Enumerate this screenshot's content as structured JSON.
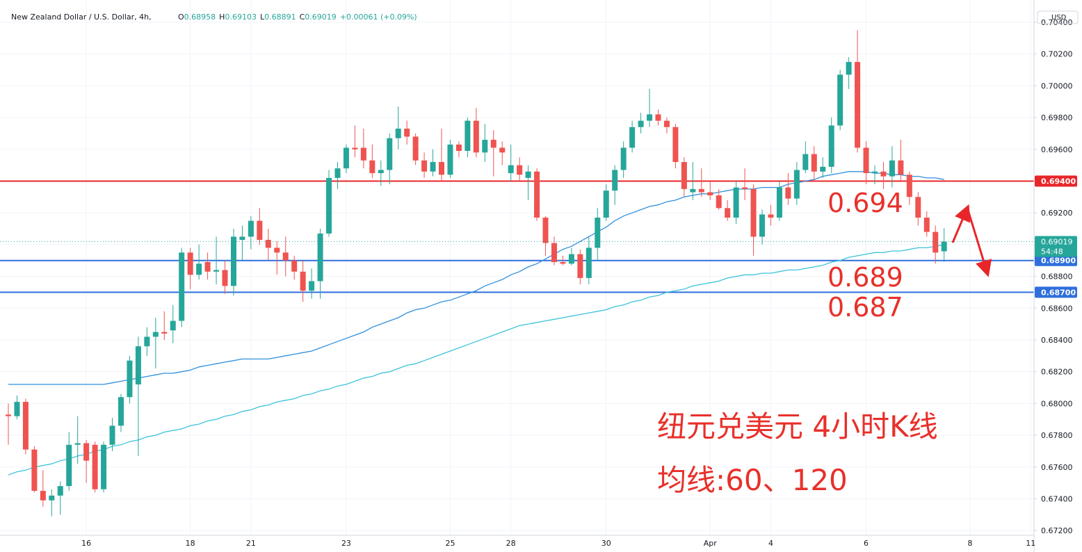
{
  "chart_data": {
    "type": "candlestick",
    "title": "New Zealand Dollar / U.S. Dollar, 4h,",
    "header_fields": [
      {
        "key": "O",
        "value": "0.68958"
      },
      {
        "key": "H",
        "value": "0.69103"
      },
      {
        "key": "L",
        "value": "0.68891"
      },
      {
        "key": "C",
        "value": "0.69019"
      }
    ],
    "change": "+0.00061 (+0.09%)",
    "currency": "USD",
    "categories": [
      null,
      null,
      null,
      null,
      null,
      null,
      null,
      null,
      null,
      "16",
      null,
      null,
      null,
      null,
      null,
      null,
      null,
      null,
      null,
      null,
      null,
      "18",
      null,
      null,
      null,
      null,
      null,
      null,
      "21",
      null,
      null,
      null,
      null,
      null,
      null,
      null,
      null,
      null,
      null,
      "23",
      null,
      null,
      null,
      null,
      null,
      null,
      null,
      null,
      null,
      null,
      null,
      "25",
      null,
      null,
      null,
      null,
      null,
      null,
      "28",
      null,
      null,
      null,
      null,
      null,
      null,
      null,
      null,
      null,
      null,
      "30",
      null,
      null,
      null,
      null,
      null,
      null,
      null,
      null,
      null,
      null,
      null,
      "Apr",
      null,
      null,
      null,
      null,
      null,
      null,
      "4",
      null,
      null,
      null,
      null,
      null,
      null,
      null,
      null,
      null,
      null,
      "6",
      null,
      null,
      null,
      null,
      null,
      null,
      null,
      null,
      null,
      null,
      null,
      "8",
      null,
      null,
      null,
      null,
      null,
      null,
      "11"
    ],
    "open": [
      0.6793,
      0.6792,
      0.6801,
      0.6771,
      0.6745,
      0.6739,
      0.6742,
      0.6748,
      0.6774,
      0.6775,
      0.6774,
      0.6746,
      0.6774,
      0.6786,
      0.6804,
      0.6812,
      0.6836,
      0.6842,
      0.6845,
      0.6846,
      0.6852,
      0.6895,
      0.6881,
      0.6889,
      0.6883,
      0.6884,
      0.6874,
      0.6903,
      0.6905,
      0.6915,
      0.6903,
      0.6898,
      0.6895,
      0.689,
      0.6883,
      0.6871,
      0.6877,
      0.6907,
      0.6942,
      0.6948,
      0.6961,
      0.6961,
      0.6953,
      0.6945,
      0.6947,
      0.6967,
      0.6973,
      0.6968,
      0.6953,
      0.6946,
      0.6952,
      0.6944,
      0.6963,
      0.6959,
      0.6978,
      0.6958,
      0.6966,
      0.6961,
      0.6945,
      0.695,
      0.6942,
      0.6946,
      0.6917,
      0.6901,
      0.6889,
      0.6888,
      0.6894,
      0.6879,
      0.6898,
      0.6917,
      0.6934,
      0.6947,
      0.6961,
      0.6974,
      0.6978,
      0.6982,
      0.6978,
      0.6974,
      0.6952,
      0.6933,
      0.6935,
      0.6933,
      0.6931,
      0.6923,
      0.6917,
      0.6936,
      0.6935,
      0.6905,
      0.6919,
      0.6917,
      0.6936,
      0.6929,
      0.6947,
      0.6957,
      0.6946,
      0.6949,
      0.6975,
      0.7007,
      0.7015,
      0.6961,
      0.6945,
      0.6946,
      0.6943,
      0.6953,
      0.6944,
      0.693,
      0.6917,
      0.6908,
      0.68958,
      null,
      null,
      null,
      null,
      null,
      null,
      null,
      null,
      null,
      null
    ],
    "high": [
      0.68,
      0.6805,
      0.6803,
      0.6773,
      0.6758,
      0.6746,
      0.6751,
      0.6782,
      0.6792,
      0.6777,
      0.6776,
      0.6776,
      0.6791,
      0.6806,
      0.683,
      0.6842,
      0.6848,
      0.6854,
      0.6858,
      0.6862,
      0.6898,
      0.6898,
      0.69,
      0.6895,
      0.6905,
      0.689,
      0.691,
      0.6912,
      0.6918,
      0.6923,
      0.691,
      0.6902,
      0.6905,
      0.6893,
      0.689,
      0.6885,
      0.691,
      0.6947,
      0.6952,
      0.6963,
      0.6975,
      0.6973,
      0.6963,
      0.6953,
      0.697,
      0.6987,
      0.6978,
      0.697,
      0.6958,
      0.696,
      0.6973,
      0.6966,
      0.6965,
      0.698,
      0.6986,
      0.6976,
      0.6972,
      0.6965,
      0.6963,
      0.6955,
      0.695,
      0.6948,
      0.6918,
      0.6905,
      0.6893,
      0.6898,
      0.6897,
      0.6905,
      0.6923,
      0.6938,
      0.695,
      0.6965,
      0.6978,
      0.6983,
      0.6998,
      0.6985,
      0.698,
      0.6976,
      0.6955,
      0.6952,
      0.6948,
      0.694,
      0.6935,
      0.6928,
      0.694,
      0.6948,
      0.6938,
      0.6922,
      0.6925,
      0.694,
      0.6945,
      0.6952,
      0.6965,
      0.6962,
      0.6955,
      0.698,
      0.701,
      0.7018,
      0.7035,
      0.6965,
      0.695,
      0.6952,
      0.6962,
      0.6966,
      0.6946,
      0.6933,
      0.6921,
      0.6912,
      0.69103,
      null,
      null,
      null,
      null,
      null,
      null,
      null,
      null,
      null,
      null
    ],
    "low": [
      0.6774,
      0.679,
      0.6768,
      0.6744,
      0.6735,
      0.6729,
      0.673,
      0.6745,
      0.6762,
      0.675,
      0.6744,
      0.6744,
      0.677,
      0.6782,
      0.68,
      0.6767,
      0.683,
      0.6822,
      0.684,
      0.6838,
      0.6848,
      0.6872,
      0.6878,
      0.6878,
      0.6875,
      0.6869,
      0.6868,
      0.689,
      0.6897,
      0.69,
      0.689,
      0.6881,
      0.688,
      0.6878,
      0.6864,
      0.6866,
      0.6866,
      0.6905,
      0.6935,
      0.6945,
      0.6955,
      0.6948,
      0.6942,
      0.6937,
      0.6938,
      0.696,
      0.6963,
      0.695,
      0.6942,
      0.6943,
      0.694,
      0.6942,
      0.6955,
      0.6955,
      0.6955,
      0.6952,
      0.6943,
      0.695,
      0.694,
      0.694,
      0.6928,
      0.6915,
      0.6893,
      0.6887,
      0.6887,
      0.6887,
      0.6875,
      0.6875,
      0.689,
      0.6915,
      0.6925,
      0.6942,
      0.6958,
      0.697,
      0.6974,
      0.6975,
      0.697,
      0.6948,
      0.693,
      0.6928,
      0.693,
      0.6928,
      0.6922,
      0.6915,
      0.6913,
      0.6928,
      0.6893,
      0.69,
      0.6912,
      0.6915,
      0.6925,
      0.6925,
      0.6945,
      0.694,
      0.6942,
      0.6945,
      0.6972,
      0.6998,
      0.6958,
      0.6938,
      0.6938,
      0.6935,
      0.6936,
      0.694,
      0.6925,
      0.6912,
      0.6905,
      0.6888,
      0.68891,
      null,
      null,
      null,
      null,
      null,
      null,
      null,
      null,
      null,
      null
    ],
    "close": [
      0.6792,
      0.6801,
      0.6771,
      0.6745,
      0.6739,
      0.6742,
      0.6748,
      0.6774,
      0.6775,
      0.6764,
      0.6746,
      0.6774,
      0.6786,
      0.6804,
      0.6827,
      0.6836,
      0.6842,
      0.6845,
      0.6844,
      0.6852,
      0.6895,
      0.6881,
      0.6888,
      0.6883,
      0.6884,
      0.6874,
      0.6905,
      0.6905,
      0.6915,
      0.6903,
      0.6898,
      0.6895,
      0.689,
      0.6883,
      0.6871,
      0.6877,
      0.6907,
      0.6942,
      0.6948,
      0.6961,
      0.696,
      0.6953,
      0.6945,
      0.6947,
      0.6967,
      0.6973,
      0.6968,
      0.6953,
      0.6946,
      0.6952,
      0.6944,
      0.6963,
      0.6959,
      0.6978,
      0.6958,
      0.6966,
      0.6961,
      0.6958,
      0.695,
      0.6944,
      0.6946,
      0.6917,
      0.6901,
      0.6889,
      0.6888,
      0.6894,
      0.6879,
      0.6898,
      0.6917,
      0.6934,
      0.6947,
      0.6961,
      0.6974,
      0.6978,
      0.6982,
      0.6978,
      0.6974,
      0.6952,
      0.6935,
      0.6935,
      0.6933,
      0.6931,
      0.6923,
      0.6917,
      0.6936,
      0.6935,
      0.6905,
      0.6919,
      0.6917,
      0.6936,
      0.6929,
      0.6947,
      0.6957,
      0.6946,
      0.6949,
      0.6975,
      0.7007,
      0.7015,
      0.6961,
      0.6945,
      0.6946,
      0.6943,
      0.6953,
      0.6944,
      0.693,
      0.6917,
      0.6908,
      0.6895,
      0.69019,
      null,
      null,
      null,
      null,
      null,
      null,
      null,
      null,
      null,
      null
    ],
    "up_color": "#26a69a",
    "down_color": "#ef5350",
    "ma_lines": [
      {
        "color": "#2f8fdd",
        "values": [
          0.6812,
          0.6812,
          0.6812,
          0.6812,
          0.6812,
          0.6812,
          0.6812,
          0.6812,
          0.6812,
          0.6812,
          0.6812,
          0.6812,
          0.6813,
          0.6814,
          0.6815,
          0.6816,
          0.6817,
          0.6818,
          0.6819,
          0.6819,
          0.682,
          0.6821,
          0.6823,
          0.6824,
          0.6825,
          0.6826,
          0.6827,
          0.6828,
          0.6828,
          0.6828,
          0.6828,
          0.6829,
          0.683,
          0.6831,
          0.6832,
          0.6833,
          0.6835,
          0.6837,
          0.6839,
          0.6841,
          0.6843,
          0.6845,
          0.6848,
          0.685,
          0.6852,
          0.6854,
          0.6857,
          0.6859,
          0.686,
          0.6862,
          0.6864,
          0.6865,
          0.6867,
          0.6869,
          0.6871,
          0.6874,
          0.6876,
          0.6878,
          0.6881,
          0.6883,
          0.6886,
          0.6888,
          0.6891,
          0.6894,
          0.6897,
          0.6899,
          0.6902,
          0.6905,
          0.6908,
          0.6911,
          0.6915,
          0.6918,
          0.692,
          0.6922,
          0.6924,
          0.6925,
          0.6927,
          0.6928,
          0.693,
          0.6931,
          0.6932,
          0.6932,
          0.6933,
          0.6934,
          0.6935,
          0.6935,
          0.6935,
          0.6936,
          0.6936,
          0.6936,
          0.6938,
          0.6939,
          0.694,
          0.6941,
          0.6943,
          0.6944,
          0.6945,
          0.6946,
          0.6946,
          0.6946,
          0.6945,
          0.6945,
          0.6944,
          0.6944,
          0.6943,
          0.6943,
          0.6942,
          0.6942,
          0.6941,
          null,
          null,
          null,
          null,
          null,
          null,
          null,
          null,
          null,
          null
        ]
      },
      {
        "color": "#3cc3d9",
        "values": [
          0.6755,
          0.6757,
          0.6758,
          0.676,
          0.6761,
          0.6762,
          0.6764,
          0.6765,
          0.6767,
          0.6768,
          0.677,
          0.6771,
          0.6773,
          0.6774,
          0.6776,
          0.6777,
          0.6779,
          0.678,
          0.6782,
          0.6783,
          0.6784,
          0.6786,
          0.6787,
          0.6789,
          0.679,
          0.6792,
          0.6793,
          0.6795,
          0.6796,
          0.6798,
          0.6799,
          0.6801,
          0.6802,
          0.6803,
          0.6805,
          0.6806,
          0.6808,
          0.6809,
          0.6811,
          0.6812,
          0.6814,
          0.6816,
          0.6817,
          0.6819,
          0.682,
          0.6822,
          0.6824,
          0.6825,
          0.6827,
          0.6829,
          0.6831,
          0.6833,
          0.6835,
          0.6837,
          0.6839,
          0.6841,
          0.6843,
          0.6845,
          0.6847,
          0.6849,
          0.685,
          0.6851,
          0.6852,
          0.6853,
          0.6854,
          0.6855,
          0.6856,
          0.6857,
          0.6858,
          0.6859,
          0.6861,
          0.6862,
          0.6864,
          0.6865,
          0.6867,
          0.6868,
          0.687,
          0.6871,
          0.6872,
          0.6874,
          0.6875,
          0.6876,
          0.6877,
          0.6879,
          0.688,
          0.6881,
          0.6881,
          0.6882,
          0.6882,
          0.6883,
          0.6884,
          0.6884,
          0.6885,
          0.6886,
          0.6887,
          0.6889,
          0.689,
          0.6892,
          0.6893,
          0.6894,
          0.6895,
          0.6895,
          0.6896,
          0.6896,
          0.6897,
          0.6898,
          0.6898,
          0.6899,
          0.69,
          null,
          null,
          null,
          null,
          null,
          null,
          null,
          null,
          null,
          null
        ]
      }
    ],
    "levels": [
      {
        "value": 0.694,
        "label": "0.69400",
        "color": "#e8262a"
      },
      {
        "value": 0.689,
        "label": "0.68900",
        "color": "#2f6fdc"
      },
      {
        "value": 0.687,
        "label": "0.68700",
        "color": "#2f6fdc"
      }
    ],
    "last_price": {
      "value": 0.69019,
      "label": "0.69019",
      "countdown": "54:48",
      "color": "#26a69a"
    },
    "ylim": [
      0.6717,
      0.7054
    ],
    "yticks": [
      {
        "value": 0.672,
        "label": "0.67200"
      },
      {
        "value": 0.674,
        "label": "0.67400"
      },
      {
        "value": 0.676,
        "label": "0.67600"
      },
      {
        "value": 0.678,
        "label": "0.67800"
      },
      {
        "value": 0.68,
        "label": "0.68000"
      },
      {
        "value": 0.682,
        "label": "0.68200"
      },
      {
        "value": 0.684,
        "label": "0.68400"
      },
      {
        "value": 0.686,
        "label": "0.68600"
      },
      {
        "value": 0.688,
        "label": "0.68800"
      },
      {
        "value": 0.69,
        "label": "0.69000"
      },
      {
        "value": 0.692,
        "label": "0.69200"
      },
      {
        "value": 0.694,
        "label": "0.69400"
      },
      {
        "value": 0.696,
        "label": "0.69600"
      },
      {
        "value": 0.698,
        "label": "0.69800"
      },
      {
        "value": 0.7,
        "label": "0.70000"
      },
      {
        "value": 0.702,
        "label": "0.70200"
      },
      {
        "value": 0.704,
        "label": "0.70400"
      }
    ],
    "grid": true,
    "annotations": [
      "0.694",
      "0.689",
      "0.687",
      "纽元兑美元 4小时K线",
      "均线:60、120"
    ]
  }
}
